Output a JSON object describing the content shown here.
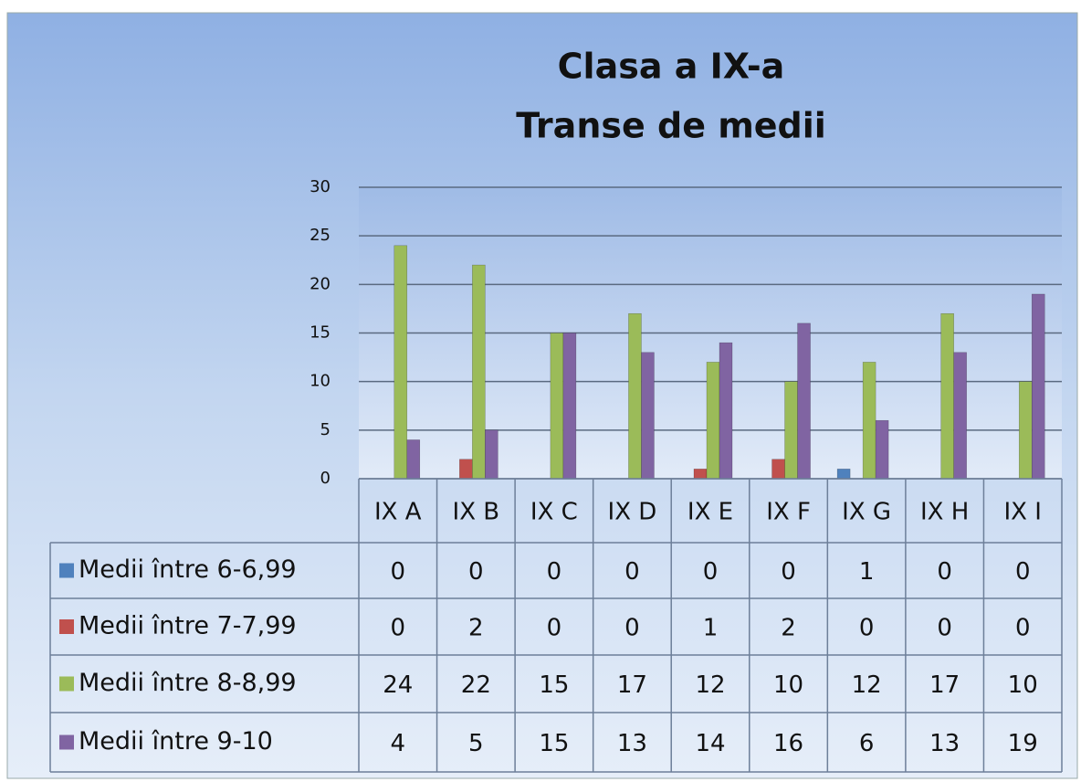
{
  "chart_data": {
    "type": "bar",
    "title": "Clasa a IX-a",
    "subtitle": "Transe de medii",
    "categories": [
      "IX A",
      "IX B",
      "IX C",
      "IX D",
      "IX E",
      "IX F",
      "IX G",
      "IX H",
      "IX I"
    ],
    "series": [
      {
        "name": "Medii între 6-6,99",
        "color": "#4f81bd",
        "values": [
          0,
          0,
          0,
          0,
          0,
          0,
          1,
          0,
          0
        ]
      },
      {
        "name": "Medii între 7-7,99",
        "color": "#c0504d",
        "values": [
          0,
          2,
          0,
          0,
          1,
          2,
          0,
          0,
          0
        ]
      },
      {
        "name": "Medii între 8-8,99",
        "color": "#9bbb59",
        "values": [
          24,
          22,
          15,
          17,
          12,
          10,
          12,
          17,
          10
        ]
      },
      {
        "name": "Medii între 9-10",
        "color": "#8064a2",
        "values": [
          4,
          5,
          15,
          13,
          14,
          16,
          6,
          13,
          19
        ]
      }
    ],
    "ylim": [
      0,
      30
    ],
    "yticks": [
      0,
      5,
      10,
      15,
      20,
      25,
      30
    ],
    "grid": true,
    "data_table": true
  }
}
